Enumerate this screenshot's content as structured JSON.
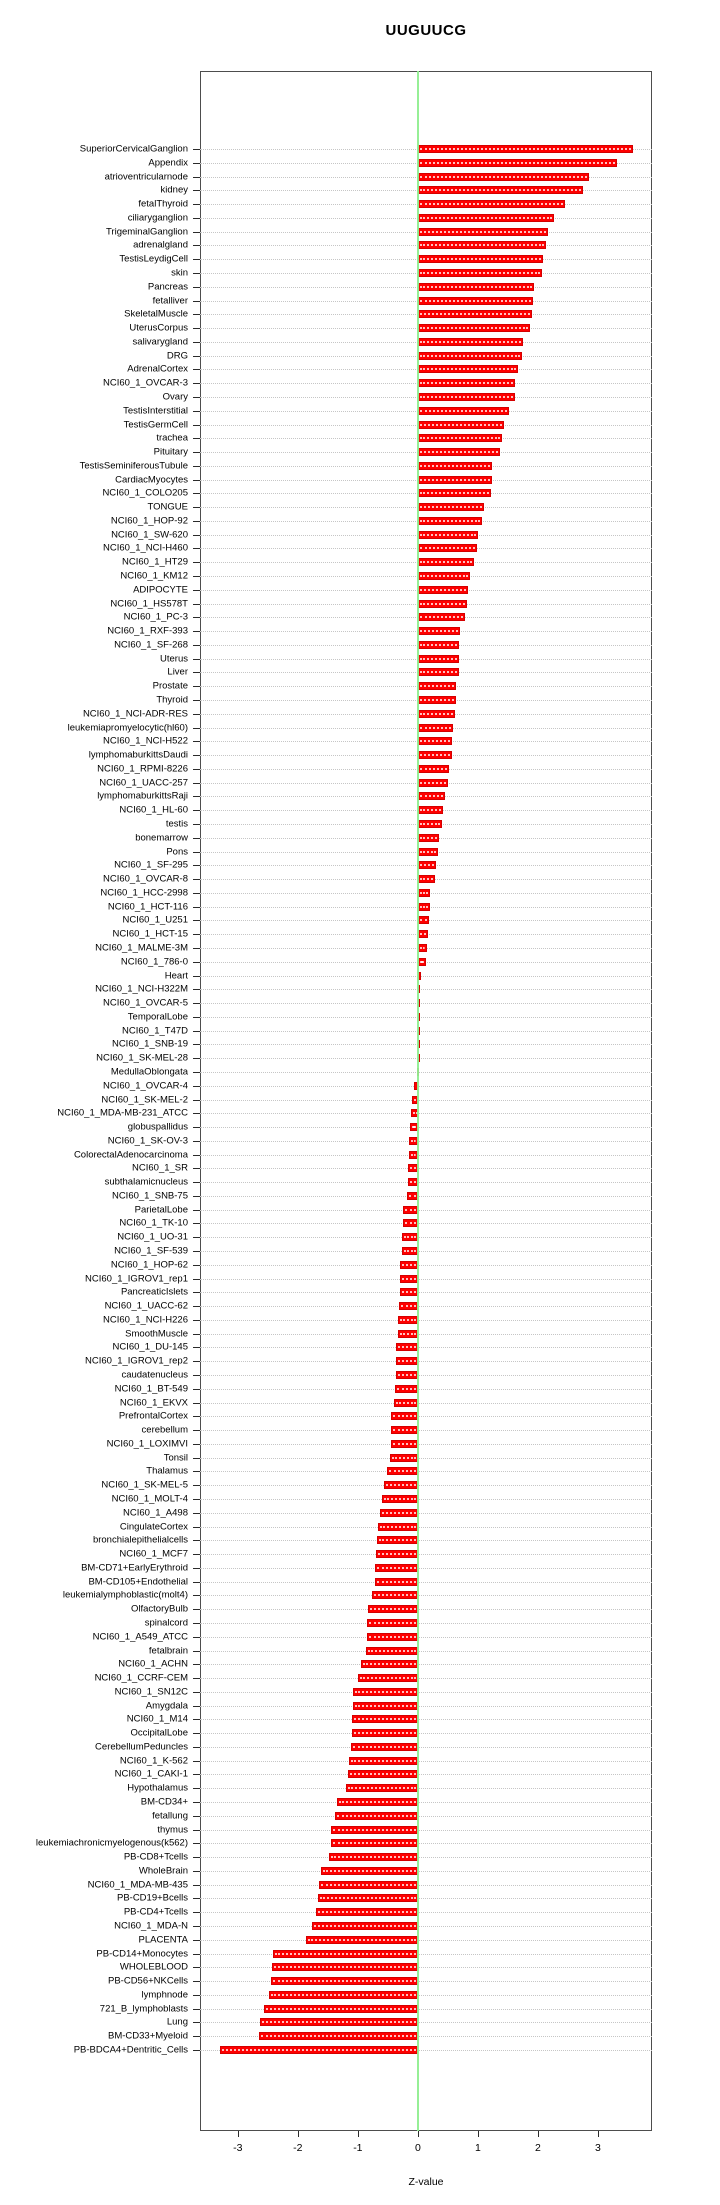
{
  "chart_data": {
    "type": "bar",
    "orientation": "horizontal",
    "title": "UUGUUCG",
    "xlabel": "Z-value",
    "xlim": [
      -3.63,
      3.9
    ],
    "xticks": [
      -3,
      -2,
      -1,
      0,
      1,
      2,
      3
    ],
    "grid": "dotted horizontal per category",
    "legend": "none",
    "bar_color": "#fe0000",
    "zero_line_color": "#90ee90",
    "categories": [
      "SuperiorCervicalGanglion",
      "Appendix",
      "atrioventricularnode",
      "kidney",
      "fetalThyroid",
      "ciliaryganglion",
      "TrigeminalGanglion",
      "adrenalgland",
      "TestisLeydigCell",
      "skin",
      "Pancreas",
      "fetalliver",
      "SkeletalMuscle",
      "UterusCorpus",
      "salivarygland",
      "DRG",
      "AdrenalCortex",
      "NCI60_1_OVCAR-3",
      "Ovary",
      "TestisInterstitial",
      "TestisGermCell",
      "trachea",
      "Pituitary",
      "TestisSeminiferousTubule",
      "CardiacMyocytes",
      "NCI60_1_COLO205",
      "TONGUE",
      "NCI60_1_HOP-92",
      "NCI60_1_SW-620",
      "NCI60_1_NCI-H460",
      "NCI60_1_HT29",
      "NCI60_1_KM12",
      "ADIPOCYTE",
      "NCI60_1_HS578T",
      "NCI60_1_PC-3",
      "NCI60_1_RXF-393",
      "NCI60_1_SF-268",
      "Uterus",
      "Liver",
      "Prostate",
      "Thyroid",
      "NCI60_1_NCI-ADR-RES",
      "leukemiapromyelocytic(hl60)",
      "NCI60_1_NCI-H522",
      "lymphomaburkittsDaudi",
      "NCI60_1_RPMI-8226",
      "NCI60_1_UACC-257",
      "lymphomaburkittsRaji",
      "NCI60_1_HL-60",
      "testis",
      "bonemarrow",
      "Pons",
      "NCI60_1_SF-295",
      "NCI60_1_OVCAR-8",
      "NCI60_1_HCC-2998",
      "NCI60_1_HCT-116",
      "NCI60_1_U251",
      "NCI60_1_HCT-15",
      "NCI60_1_MALME-3M",
      "NCI60_1_786-0",
      "Heart",
      "NCI60_1_NCI-H322M",
      "NCI60_1_OVCAR-5",
      "TemporalLobe",
      "NCI60_1_T47D",
      "NCI60_1_SNB-19",
      "NCI60_1_SK-MEL-28",
      "MedullaOblongata",
      "NCI60_1_OVCAR-4",
      "NCI60_1_SK-MEL-2",
      "NCI60_1_MDA-MB-231_ATCC",
      "globuspallidus",
      "NCI60_1_SK-OV-3",
      "ColorectalAdenocarcinoma",
      "NCI60_1_SR",
      "subthalamicnucleus",
      "NCI60_1_SNB-75",
      "ParietalLobe",
      "NCI60_1_TK-10",
      "NCI60_1_UO-31",
      "NCI60_1_SF-539",
      "NCI60_1_HOP-62",
      "NCI60_1_IGROV1_rep1",
      "PancreaticIslets",
      "NCI60_1_UACC-62",
      "NCI60_1_NCI-H226",
      "SmoothMuscle",
      "NCI60_1_DU-145",
      "NCI60_1_IGROV1_rep2",
      "caudatenucleus",
      "NCI60_1_BT-549",
      "NCI60_1_EKVX",
      "PrefrontalCortex",
      "cerebellum",
      "NCI60_1_LOXIMVI",
      "Tonsil",
      "Thalamus",
      "NCI60_1_SK-MEL-5",
      "NCI60_1_MOLT-4",
      "NCI60_1_A498",
      "CingulateCortex",
      "bronchialepithelialcells",
      "NCI60_1_MCF7",
      "BM-CD71+EarlyErythroid",
      "BM-CD105+Endothelial",
      "leukemialymphoblastic(molt4)",
      "OlfactoryBulb",
      "spinalcord",
      "NCI60_1_A549_ATCC",
      "fetalbrain",
      "NCI60_1_ACHN",
      "NCI60_1_CCRF-CEM",
      "NCI60_1_SN12C",
      "Amygdala",
      "NCI60_1_M14",
      "OccipitalLobe",
      "CerebellumPeduncles",
      "NCI60_1_K-562",
      "NCI60_1_CAKI-1",
      "Hypothalamus",
      "BM-CD34+",
      "fetallung",
      "thymus",
      "leukemiachronicmyelogenous(k562)",
      "PB-CD8+Tcells",
      "WholeBrain",
      "NCI60_1_MDA-MB-435",
      "PB-CD19+Bcells",
      "PB-CD4+Tcells",
      "NCI60_1_MDA-N",
      "PLACENTA",
      "PB-CD14+Monocytes",
      "WHOLEBLOOD",
      "PB-CD56+NKCells",
      "lymphnode",
      "721_B_lymphoblasts",
      "Lung",
      "BM-CD33+Myeloid",
      "PB-BDCA4+Dentritic_Cells"
    ],
    "values": [
      3.58,
      3.32,
      2.85,
      2.75,
      2.45,
      2.27,
      2.17,
      2.13,
      2.08,
      2.06,
      1.94,
      1.91,
      1.9,
      1.87,
      1.75,
      1.73,
      1.66,
      1.62,
      1.61,
      1.52,
      1.43,
      1.4,
      1.36,
      1.24,
      1.23,
      1.22,
      1.1,
      1.06,
      1.0,
      0.98,
      0.93,
      0.87,
      0.83,
      0.82,
      0.78,
      0.7,
      0.69,
      0.69,
      0.68,
      0.64,
      0.63,
      0.62,
      0.59,
      0.57,
      0.56,
      0.51,
      0.5,
      0.45,
      0.41,
      0.4,
      0.35,
      0.34,
      0.31,
      0.28,
      0.21,
      0.2,
      0.19,
      0.17,
      0.16,
      0.13,
      0.06,
      0.04,
      0.04,
      0.03,
      0.03,
      0.01,
      0.0,
      -0.02,
      -0.07,
      -0.1,
      -0.12,
      -0.13,
      -0.14,
      -0.15,
      -0.16,
      -0.17,
      -0.18,
      -0.24,
      -0.24,
      -0.26,
      -0.26,
      -0.29,
      -0.3,
      -0.3,
      -0.31,
      -0.33,
      -0.33,
      -0.36,
      -0.36,
      -0.36,
      -0.38,
      -0.39,
      -0.44,
      -0.44,
      -0.45,
      -0.46,
      -0.51,
      -0.56,
      -0.59,
      -0.63,
      -0.67,
      -0.68,
      -0.7,
      -0.72,
      -0.72,
      -0.76,
      -0.83,
      -0.84,
      -0.85,
      -0.86,
      -0.94,
      -1.0,
      -1.08,
      -1.08,
      -1.1,
      -1.1,
      -1.12,
      -1.15,
      -1.17,
      -1.2,
      -1.34,
      -1.38,
      -1.44,
      -1.45,
      -1.48,
      -1.62,
      -1.65,
      -1.66,
      -1.69,
      -1.76,
      -1.87,
      -2.42,
      -2.43,
      -2.44,
      -2.48,
      -2.57,
      -2.63,
      -2.64,
      -3.29
    ]
  }
}
